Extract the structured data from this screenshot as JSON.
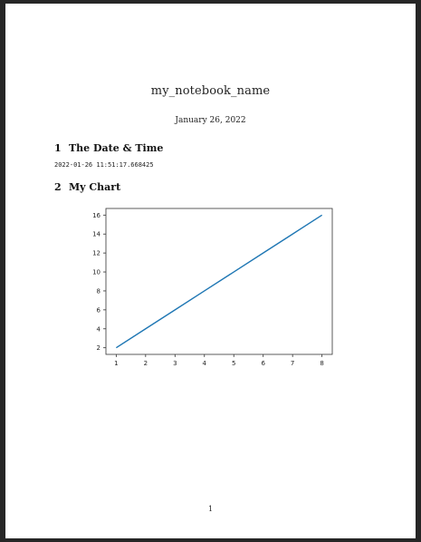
{
  "document": {
    "title": "my_notebook_name",
    "date": "January 26, 2022",
    "page_number": "1",
    "sections": [
      {
        "number": "1",
        "title": "The Date & Time"
      },
      {
        "number": "2",
        "title": "My Chart"
      }
    ],
    "timestamp_output": "2022-01-26 11:51:17.668425"
  },
  "colors": {
    "line": "#1f77b4",
    "axes": "#333333"
  },
  "chart_data": {
    "type": "line",
    "title": "",
    "xlabel": "",
    "ylabel": "",
    "xlim": [
      0.65,
      8.35
    ],
    "ylim": [
      1.3,
      16.7
    ],
    "xticks": [
      1,
      2,
      3,
      4,
      5,
      6,
      7,
      8
    ],
    "yticks": [
      2,
      4,
      6,
      8,
      10,
      12,
      14,
      16
    ],
    "grid": false,
    "series": [
      {
        "x": [
          1,
          2,
          3,
          4,
          5,
          6,
          7,
          8
        ],
        "values": [
          2,
          4,
          6,
          8,
          10,
          12,
          14,
          16
        ]
      }
    ]
  }
}
